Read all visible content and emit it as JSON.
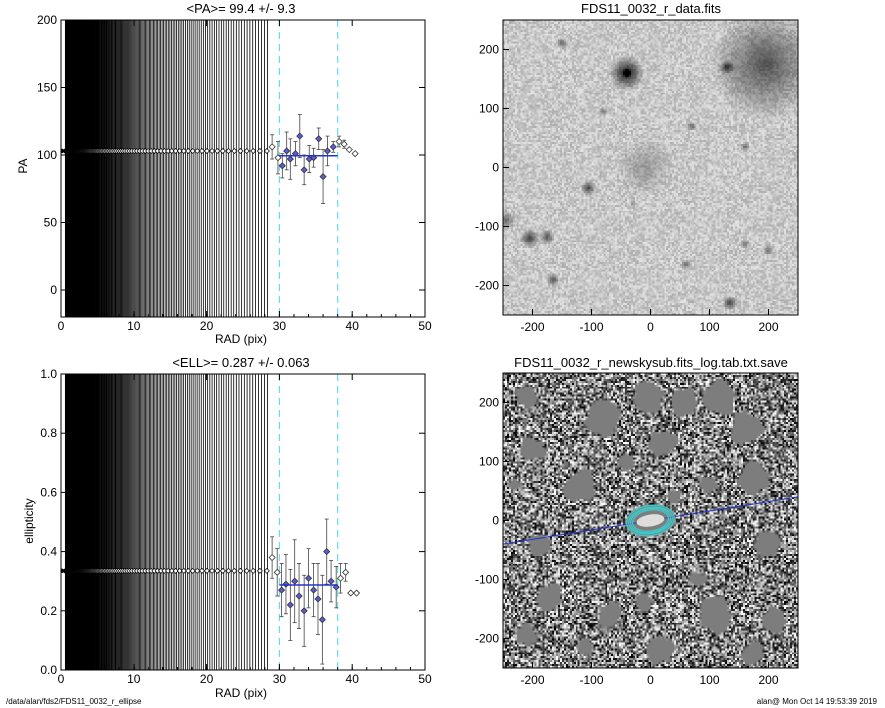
{
  "footer": {
    "left": "/data/alan/fds2/FDS11_0032_r_ellipse",
    "right": "alan@  Mon Oct 14 19:53:39 2019"
  },
  "colors": {
    "fit_line": "#2233cc",
    "marker_fill": "#5b5bd6",
    "dashed": "#66e0e0",
    "ellipse": "#40c8c8"
  },
  "chart_data": [
    {
      "type": "scatter",
      "title": "<PA>=  99.4 +/-   9.3",
      "xlabel": "RAD (pix)",
      "ylabel": "PA",
      "xlim": [
        0,
        50
      ],
      "ylim": [
        -20,
        200
      ],
      "xticks": [
        "0",
        "10",
        "20",
        "30",
        "40",
        "50"
      ],
      "yticks": [
        "0",
        "50",
        "100",
        "150",
        "200"
      ],
      "inner_constant": {
        "value": 103,
        "x_end": 28.5
      },
      "dashed_vlines": [
        30,
        38
      ],
      "fit": {
        "x": [
          30,
          38
        ],
        "y": 99.4
      },
      "points": [
        {
          "x": 29.0,
          "y": 106,
          "err": 9,
          "fit": false
        },
        {
          "x": 29.8,
          "y": 98,
          "err": 12,
          "fit": false
        },
        {
          "x": 30.4,
          "y": 92,
          "err": 9,
          "fit": true
        },
        {
          "x": 31.0,
          "y": 103,
          "err": 14,
          "fit": true
        },
        {
          "x": 31.5,
          "y": 97,
          "err": 15,
          "fit": true
        },
        {
          "x": 32.2,
          "y": 101,
          "err": 9,
          "fit": true
        },
        {
          "x": 32.8,
          "y": 114,
          "err": 16,
          "fit": true
        },
        {
          "x": 33.4,
          "y": 89,
          "err": 11,
          "fit": true
        },
        {
          "x": 34.1,
          "y": 97,
          "err": 10,
          "fit": true
        },
        {
          "x": 34.7,
          "y": 98,
          "err": 7,
          "fit": true
        },
        {
          "x": 35.4,
          "y": 112,
          "err": 8,
          "fit": true
        },
        {
          "x": 36.0,
          "y": 84,
          "err": 20,
          "fit": true
        },
        {
          "x": 36.6,
          "y": 103,
          "err": 11,
          "fit": true
        },
        {
          "x": 37.4,
          "y": 106,
          "err": 4,
          "fit": true
        },
        {
          "x": 38.2,
          "y": 110,
          "err": 4,
          "fit": false
        },
        {
          "x": 38.9,
          "y": 108,
          "err": 3,
          "fit": false
        },
        {
          "x": 39.6,
          "y": 104,
          "err": 0,
          "fit": false
        },
        {
          "x": 40.4,
          "y": 101,
          "err": 0,
          "fit": false
        }
      ]
    },
    {
      "type": "scatter",
      "title": "<ELL>= 0.287 +/-  0.063",
      "xlabel": "RAD (pix)",
      "ylabel": "ellipticity",
      "xlim": [
        0,
        50
      ],
      "ylim": [
        0,
        1
      ],
      "xticks": [
        "0",
        "10",
        "20",
        "30",
        "40",
        "50"
      ],
      "yticks": [
        "0.0",
        "0.2",
        "0.4",
        "0.6",
        "0.8",
        "1.0"
      ],
      "inner_constant": {
        "value": 0.335,
        "x_end": 28.5
      },
      "dashed_vlines": [
        30,
        38
      ],
      "fit": {
        "x": [
          30,
          38
        ],
        "y": 0.287
      },
      "points": [
        {
          "x": 29.0,
          "y": 0.38,
          "err": 0.07,
          "fit": false
        },
        {
          "x": 29.7,
          "y": 0.33,
          "err": 0.08,
          "fit": false
        },
        {
          "x": 30.3,
          "y": 0.27,
          "err": 0.09,
          "fit": true
        },
        {
          "x": 30.9,
          "y": 0.29,
          "err": 0.1,
          "fit": true
        },
        {
          "x": 31.5,
          "y": 0.22,
          "err": 0.12,
          "fit": true
        },
        {
          "x": 32.1,
          "y": 0.3,
          "err": 0.14,
          "fit": true
        },
        {
          "x": 32.7,
          "y": 0.25,
          "err": 0.11,
          "fit": true
        },
        {
          "x": 33.4,
          "y": 0.2,
          "err": 0.12,
          "fit": true
        },
        {
          "x": 34.0,
          "y": 0.31,
          "err": 0.1,
          "fit": true
        },
        {
          "x": 34.7,
          "y": 0.27,
          "err": 0.09,
          "fit": true
        },
        {
          "x": 35.3,
          "y": 0.24,
          "err": 0.12,
          "fit": true
        },
        {
          "x": 35.9,
          "y": 0.17,
          "err": 0.15,
          "fit": true
        },
        {
          "x": 36.5,
          "y": 0.4,
          "err": 0.11,
          "fit": true
        },
        {
          "x": 37.1,
          "y": 0.3,
          "err": 0.07,
          "fit": true
        },
        {
          "x": 37.8,
          "y": 0.28,
          "err": 0.07,
          "fit": true
        },
        {
          "x": 38.4,
          "y": 0.31,
          "err": 0.05,
          "fit": false
        },
        {
          "x": 39.1,
          "y": 0.33,
          "err": 0.03,
          "fit": false
        },
        {
          "x": 39.8,
          "y": 0.26,
          "err": 0.0,
          "fit": false
        },
        {
          "x": 40.6,
          "y": 0.26,
          "err": 0.0,
          "fit": false
        }
      ]
    },
    {
      "type": "heatmap",
      "title": "FDS11_0032_r_data.fits",
      "xlim": [
        -250,
        250
      ],
      "ylim": [
        -250,
        250
      ],
      "xticks": [
        "-200",
        "-100",
        "0",
        "100",
        "200"
      ],
      "yticks": [
        "-200",
        "-100",
        "0",
        "100",
        "200"
      ]
    },
    {
      "type": "heatmap",
      "title": "FDS11_0032_r_newskysub.fits_log.tab.txt.save",
      "xlim": [
        -250,
        250
      ],
      "ylim": [
        -250,
        250
      ],
      "xticks": [
        "-200",
        "-100",
        "0",
        "100",
        "200"
      ],
      "yticks": [
        "-200",
        "-100",
        "0",
        "100",
        "200"
      ]
    }
  ]
}
